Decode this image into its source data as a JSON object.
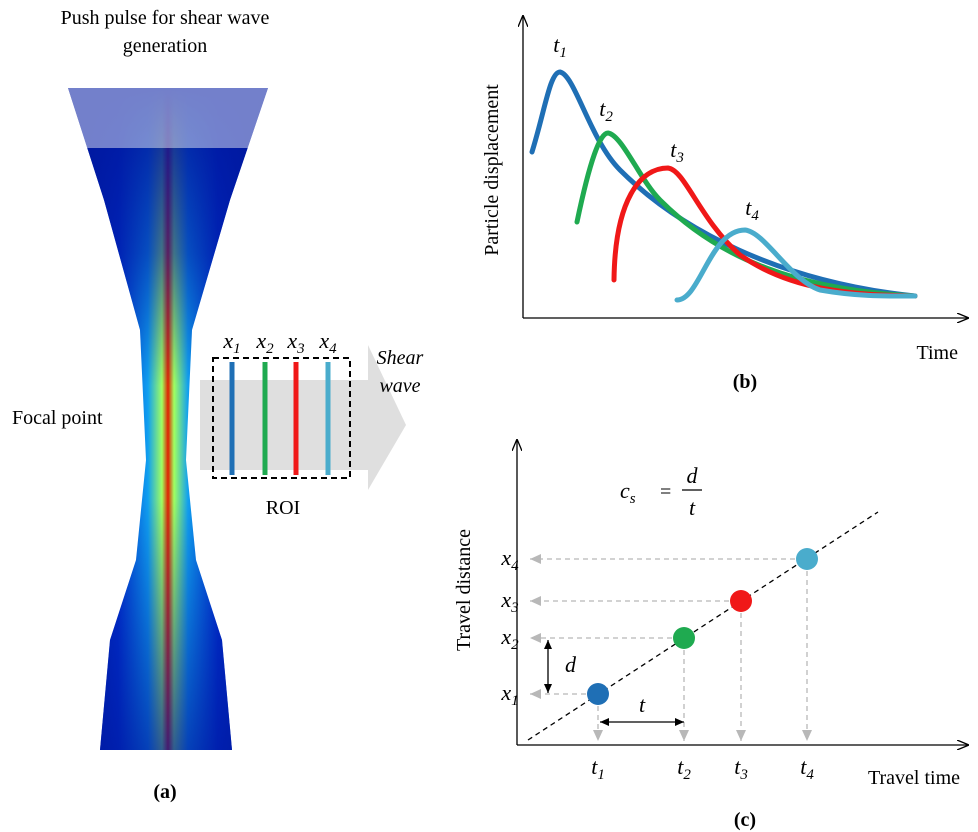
{
  "panel_a": {
    "title_lines": [
      "Push pulse for shear wave",
      "generation"
    ],
    "focal_point": "Focal point",
    "positions": [
      {
        "symbol": "x",
        "subscript": "1"
      },
      {
        "symbol": "x",
        "subscript": "2"
      },
      {
        "symbol": "x",
        "subscript": "3"
      },
      {
        "symbol": "x",
        "subscript": "4"
      }
    ],
    "shear_wave_lines": [
      "Shear",
      "wave"
    ],
    "roi": "ROI",
    "caption": "(a)"
  },
  "panel_b": {
    "y_axis_label": "Particle displacement",
    "x_axis_label": "Time",
    "peaks": [
      {
        "symbol": "t",
        "subscript": "1"
      },
      {
        "symbol": "t",
        "subscript": "2"
      },
      {
        "symbol": "t",
        "subscript": "3"
      },
      {
        "symbol": "t",
        "subscript": "4"
      }
    ],
    "caption": "(b)"
  },
  "panel_c": {
    "formula": {
      "lhs_symbol": "c",
      "lhs_subscript": "s",
      "equals": "=",
      "numerator": "d",
      "denominator": "t"
    },
    "y_axis_label": "Travel distance",
    "x_axis_label": "Travel time",
    "positions": [
      {
        "symbol": "x",
        "subscript": "1"
      },
      {
        "symbol": "x",
        "subscript": "2"
      },
      {
        "symbol": "x",
        "subscript": "3"
      },
      {
        "symbol": "x",
        "subscript": "4"
      }
    ],
    "times": [
      {
        "symbol": "t",
        "subscript": "1"
      },
      {
        "symbol": "t",
        "subscript": "2"
      },
      {
        "symbol": "t",
        "subscript": "3"
      },
      {
        "symbol": "t",
        "subscript": "4"
      }
    ],
    "distance_label": "d",
    "time_label": "t",
    "caption": "(c)"
  }
}
